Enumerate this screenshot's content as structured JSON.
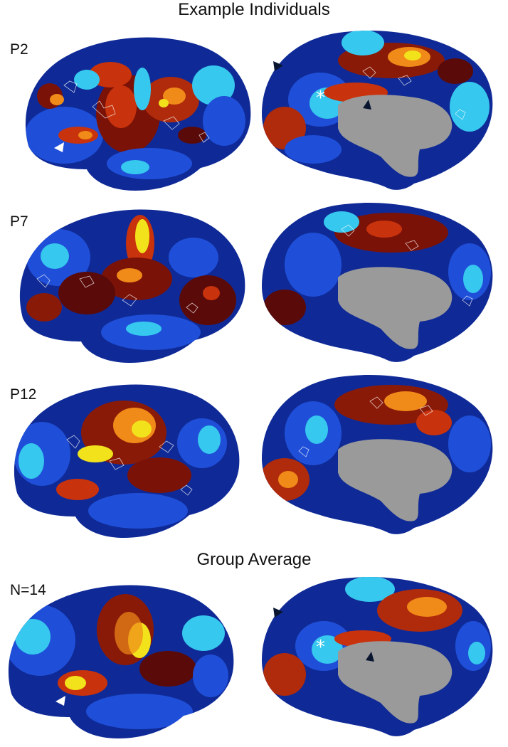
{
  "headings": {
    "individuals": "Example Individuals",
    "group": "Group Average"
  },
  "rows": [
    {
      "label": "P2"
    },
    {
      "label": "P7"
    },
    {
      "label": "P12"
    },
    {
      "label": "N=14"
    }
  ],
  "colors": {
    "background": "#ffffff",
    "negative_dark": "#0a1a6e",
    "negative_mid": "#1f4fd8",
    "negative_light": "#36c8ee",
    "positive_dark": "#5a0a08",
    "positive_mid": "#c8320c",
    "positive_bright": "#f08a18",
    "positive_peak": "#f2e21c",
    "medial_wall": "#9a9a9a",
    "annotation_white": "#ffffff",
    "annotation_black": "#0a1630"
  }
}
